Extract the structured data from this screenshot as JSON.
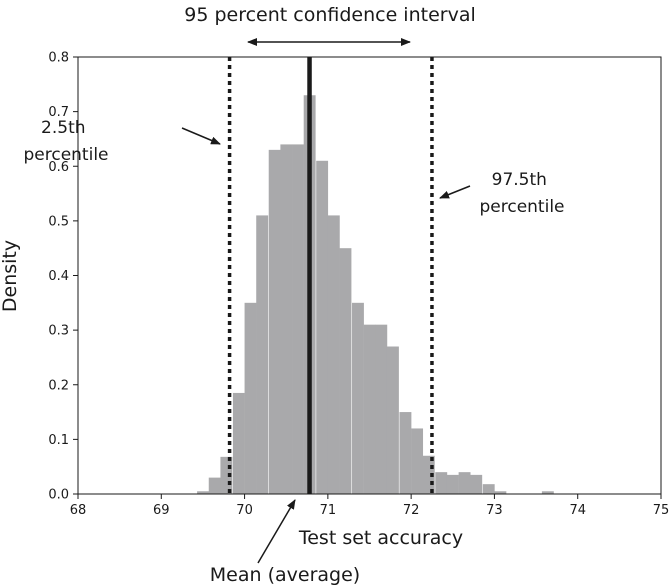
{
  "chart_data": {
    "type": "bar",
    "title": "95 percent confidence interval",
    "xlabel": "Test set accuracy",
    "ylabel": "Density",
    "xlim": [
      68,
      75
    ],
    "ylim": [
      0,
      0.8
    ],
    "xticks": [
      "68",
      "69",
      "70",
      "71",
      "72",
      "73",
      "74",
      "75"
    ],
    "yticks": [
      "0.0",
      "0.1",
      "0.2",
      "0.3",
      "0.4",
      "0.5",
      "0.6",
      "0.7",
      "0.8"
    ],
    "bin_width": 0.1428,
    "bins": [
      {
        "x": 69.43,
        "value": 0.005
      },
      {
        "x": 69.57,
        "value": 0.03
      },
      {
        "x": 69.71,
        "value": 0.068
      },
      {
        "x": 69.86,
        "value": 0.185
      },
      {
        "x": 70.0,
        "value": 0.35
      },
      {
        "x": 70.14,
        "value": 0.51
      },
      {
        "x": 70.29,
        "value": 0.63
      },
      {
        "x": 70.43,
        "value": 0.64
      },
      {
        "x": 70.57,
        "value": 0.64
      },
      {
        "x": 70.71,
        "value": 0.73
      },
      {
        "x": 70.86,
        "value": 0.61
      },
      {
        "x": 71.0,
        "value": 0.51
      },
      {
        "x": 71.14,
        "value": 0.45
      },
      {
        "x": 71.29,
        "value": 0.35
      },
      {
        "x": 71.43,
        "value": 0.31
      },
      {
        "x": 71.57,
        "value": 0.31
      },
      {
        "x": 71.71,
        "value": 0.27
      },
      {
        "x": 71.86,
        "value": 0.15
      },
      {
        "x": 72.0,
        "value": 0.12
      },
      {
        "x": 72.14,
        "value": 0.07
      },
      {
        "x": 72.29,
        "value": 0.04
      },
      {
        "x": 72.43,
        "value": 0.035
      },
      {
        "x": 72.57,
        "value": 0.04
      },
      {
        "x": 72.71,
        "value": 0.035
      },
      {
        "x": 72.86,
        "value": 0.018
      },
      {
        "x": 73.0,
        "value": 0.005
      },
      {
        "x": 73.57,
        "value": 0.005
      }
    ],
    "mean": 70.78,
    "percentile_2_5": 69.82,
    "percentile_97_5": 72.25,
    "annotations": {
      "lower_percentile": [
        "2.5th",
        "percentile"
      ],
      "upper_percentile": [
        "97.5th",
        "percentile"
      ],
      "mean": "Mean (average)"
    },
    "colors": {
      "bars": "#a9a9ab",
      "lines": "#1a1a1a"
    },
    "grid": false
  }
}
